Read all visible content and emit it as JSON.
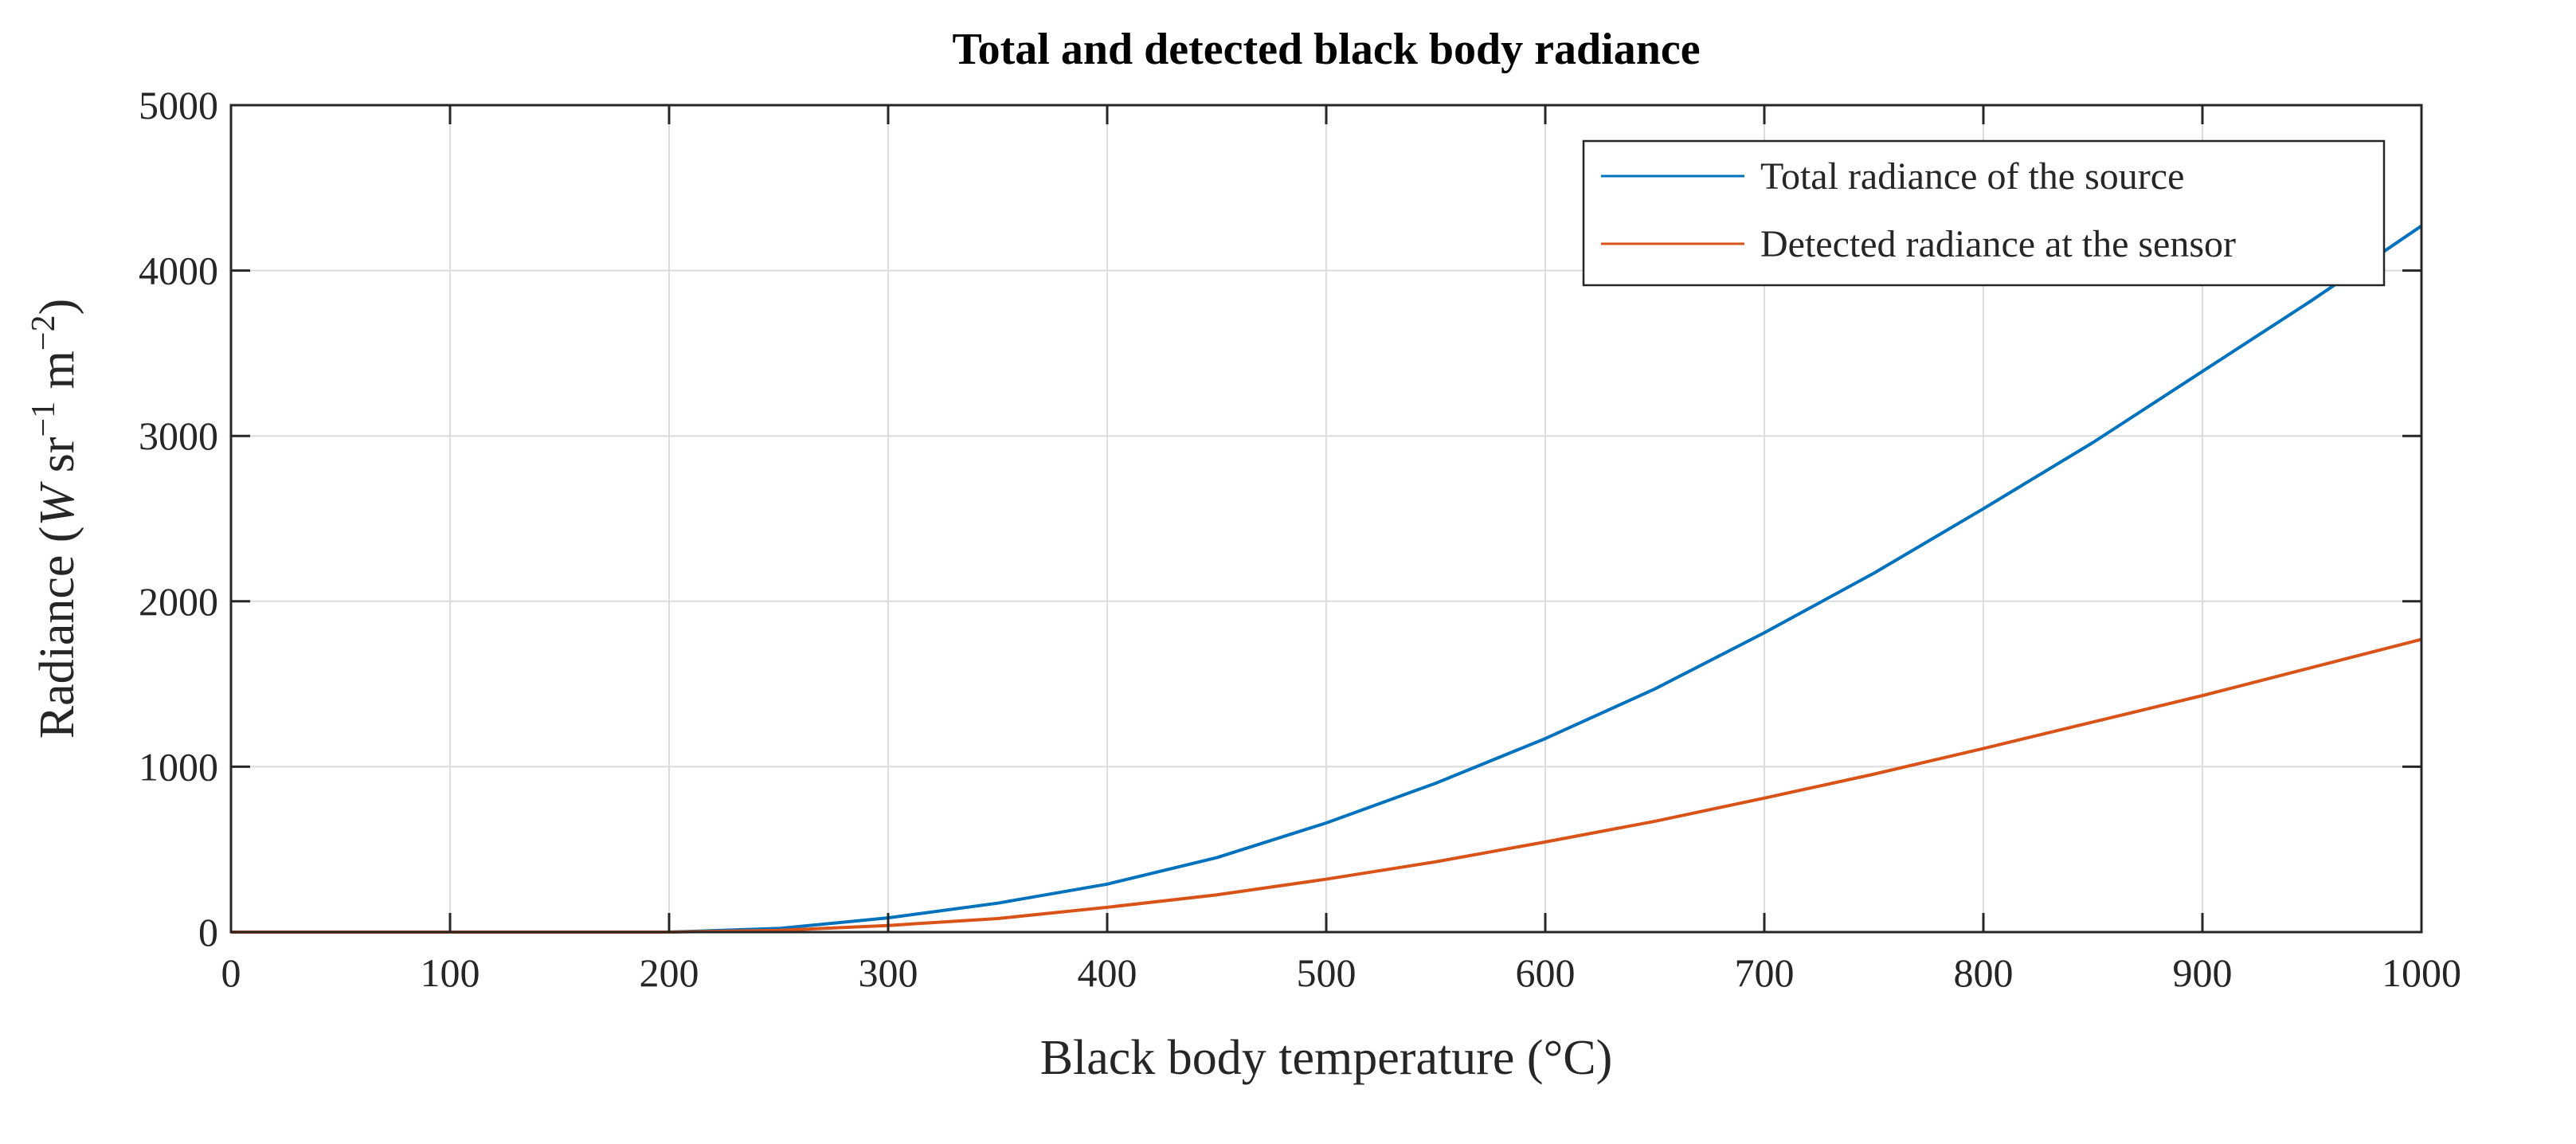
{
  "chart_data": {
    "type": "line",
    "title": "Total and detected black body radiance",
    "xlabel": "Black body temperature (°C)",
    "ylabel": {
      "prefix": "Radiance (",
      "unit_w": "W",
      "unit_sr": " sr",
      "exp1": "−1",
      "unit_m": " m",
      "exp2": "−2",
      "suffix": ")"
    },
    "xlim": [
      0,
      1000
    ],
    "ylim": [
      0,
      5000
    ],
    "xticks": [
      0,
      100,
      200,
      300,
      400,
      500,
      600,
      700,
      800,
      900,
      1000
    ],
    "yticks": [
      0,
      1000,
      2000,
      3000,
      4000,
      5000
    ],
    "grid": true,
    "legend_position": "top-right",
    "x": [
      0,
      50,
      100,
      150,
      200,
      250,
      300,
      350,
      400,
      450,
      500,
      550,
      600,
      650,
      700,
      750,
      800,
      850,
      900,
      950,
      1000
    ],
    "series": [
      {
        "name": "Total radiance of the source",
        "color": "#0072BD",
        "values": [
          0,
          0,
          0,
          0,
          0,
          22,
          86,
          175,
          290,
          450,
          660,
          900,
          1170,
          1470,
          1810,
          2170,
          2560,
          2960,
          3390,
          3820,
          4270
        ]
      },
      {
        "name": "Detected radiance at the sensor",
        "color": "#D95319",
        "values": [
          0,
          0,
          0,
          0,
          0,
          10,
          40,
          82,
          150,
          225,
          320,
          425,
          545,
          670,
          810,
          955,
          1110,
          1270,
          1430,
          1600,
          1770
        ]
      }
    ]
  }
}
